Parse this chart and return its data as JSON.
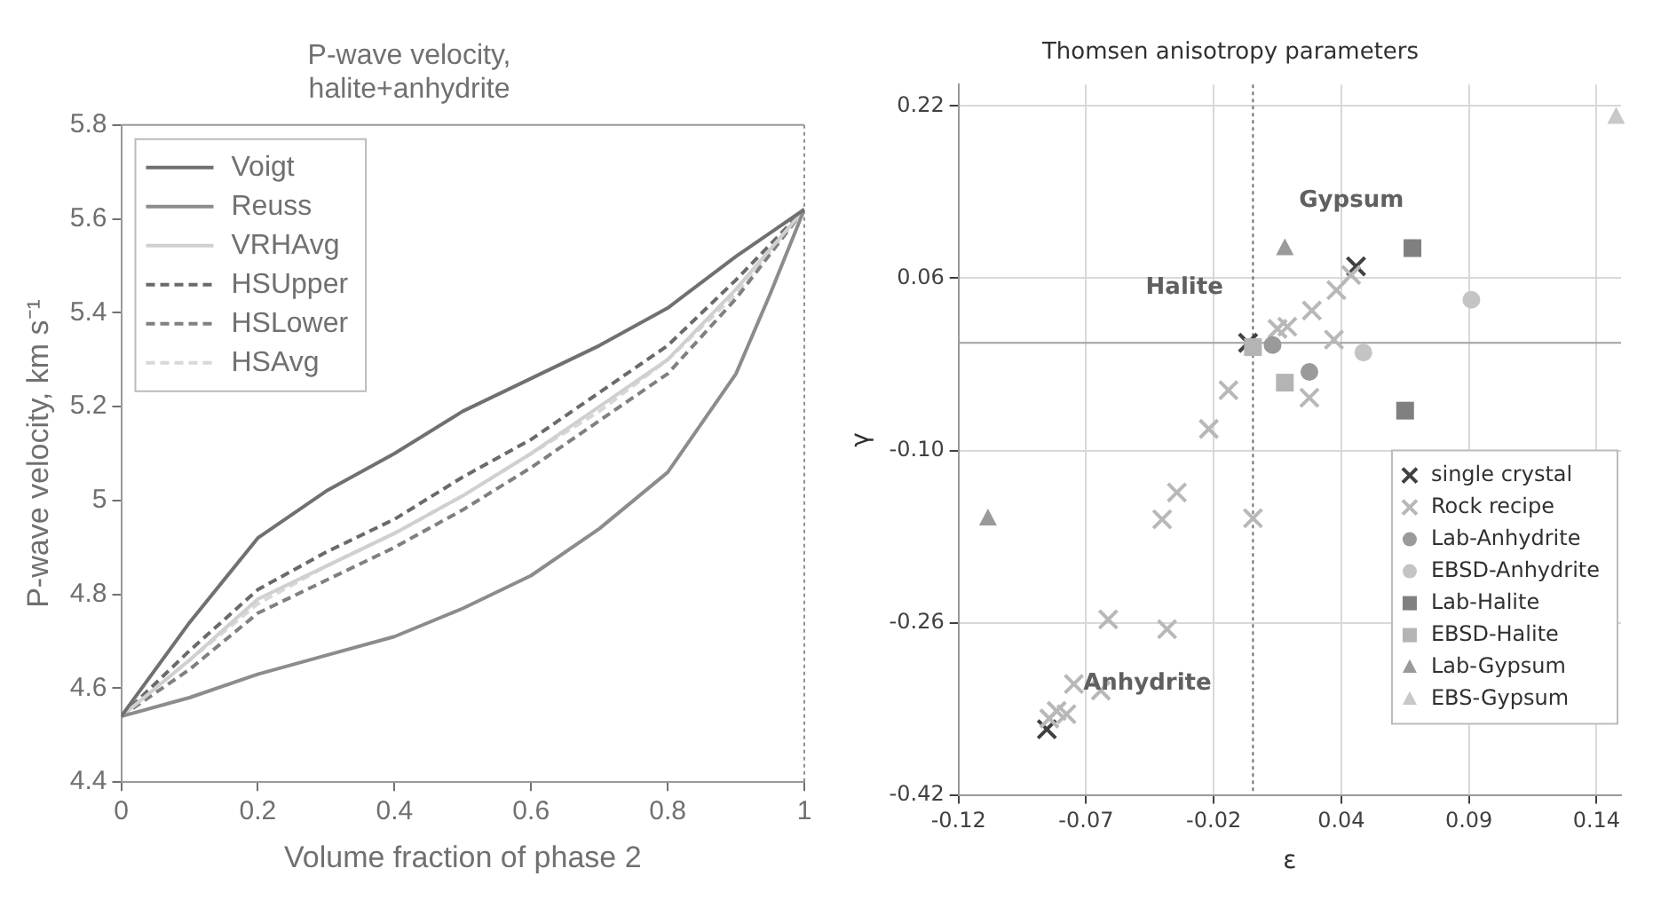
{
  "chart_data": [
    {
      "type": "line",
      "title": "P-wave velocity,\nhalite+anhydrite",
      "xlabel": "Volume fraction of phase 2",
      "ylabel": "P-wave velocity, km s⁻¹",
      "xlim": [
        0,
        1
      ],
      "xticks": [
        0,
        0.2,
        0.4,
        0.6,
        0.8,
        1
      ],
      "ylim": [
        4.4,
        5.8
      ],
      "yticks": [
        4.4,
        4.6,
        4.8,
        5,
        5.2,
        5.4,
        5.6,
        5.8
      ],
      "grid": false,
      "legend": "top left",
      "marker": "none",
      "series": [
        {
          "name": "Voigt",
          "color": "#707070",
          "line_style": "solid",
          "x": [
            0,
            0.1,
            0.2,
            0.3,
            0.4,
            0.5,
            0.6,
            0.7,
            0.8,
            0.9,
            1
          ],
          "values": [
            4.54,
            4.74,
            4.92,
            5.02,
            5.1,
            5.19,
            5.26,
            5.33,
            5.41,
            5.52,
            5.62
          ]
        },
        {
          "name": "Reuss",
          "color": "#8c8c8c",
          "line_style": "solid",
          "x": [
            0,
            0.1,
            0.2,
            0.3,
            0.4,
            0.5,
            0.6,
            0.7,
            0.8,
            0.9,
            0.95,
            1
          ],
          "values": [
            4.54,
            4.58,
            4.63,
            4.67,
            4.71,
            4.77,
            4.84,
            4.94,
            5.06,
            5.27,
            5.44,
            5.62
          ]
        },
        {
          "name": "VRHAvg",
          "color": "#d0d0d0",
          "line_style": "solid",
          "x": [
            0,
            0.1,
            0.2,
            0.3,
            0.4,
            0.5,
            0.6,
            0.7,
            0.8,
            0.9,
            1
          ],
          "values": [
            4.54,
            4.66,
            4.79,
            4.86,
            4.93,
            5.01,
            5.1,
            5.2,
            5.3,
            5.45,
            5.62
          ]
        },
        {
          "name": "HSUpper",
          "color": "#6a6a6a",
          "line_style": "dashed",
          "x": [
            0,
            0.1,
            0.2,
            0.3,
            0.4,
            0.5,
            0.6,
            0.7,
            0.8,
            0.9,
            1
          ],
          "values": [
            4.54,
            4.68,
            4.81,
            4.89,
            4.96,
            5.05,
            5.13,
            5.23,
            5.33,
            5.47,
            5.62
          ]
        },
        {
          "name": "HSLower",
          "color": "#808080",
          "line_style": "dashed",
          "x": [
            0,
            0.1,
            0.2,
            0.3,
            0.4,
            0.5,
            0.6,
            0.7,
            0.8,
            0.9,
            1
          ],
          "values": [
            4.54,
            4.64,
            4.76,
            4.83,
            4.9,
            4.98,
            5.07,
            5.17,
            5.27,
            5.43,
            5.62
          ]
        },
        {
          "name": "HSAvg",
          "color": "#d8d8d8",
          "line_style": "dashed",
          "x": [
            0,
            0.1,
            0.2,
            0.3,
            0.4,
            0.5,
            0.6,
            0.7,
            0.8,
            0.9,
            1
          ],
          "values": [
            4.54,
            4.66,
            4.78,
            4.86,
            4.93,
            5.01,
            5.1,
            5.19,
            5.3,
            5.44,
            5.62
          ]
        }
      ],
      "ref_lines": [
        {
          "axis": "x",
          "value": 1,
          "color": "#909090",
          "line_style": "dotted"
        }
      ]
    },
    {
      "type": "scatter",
      "title": "Thomsen anisotropy parameters",
      "xlabel": "ε",
      "ylabel": "γ",
      "xlim": [
        -0.12,
        0.15
      ],
      "xticks": [
        {
          "value": -0.12,
          "label": "-0.12"
        },
        {
          "value": -0.068,
          "label": "-0.07"
        },
        {
          "value": -0.016,
          "label": "-0.02"
        },
        {
          "value": 0.036,
          "label": "0.04"
        },
        {
          "value": 0.088,
          "label": "0.09"
        },
        {
          "value": 0.14,
          "label": "0.14"
        }
      ],
      "ylim": [
        -0.42,
        0.24
      ],
      "yticks": [
        {
          "value": -0.42,
          "label": "-0.42"
        },
        {
          "value": -0.26,
          "label": "-0.26"
        },
        {
          "value": -0.1,
          "label": "-0.10"
        },
        {
          "value": 0.06,
          "label": "0.06"
        },
        {
          "value": 0.22,
          "label": "0.22"
        }
      ],
      "grid": true,
      "legend": "bottom right",
      "series": [
        {
          "name": "single crystal",
          "color": "#404040",
          "marker": "cross",
          "x": [
            0.042,
            -0.084,
            -0.002
          ],
          "values": [
            0.071,
            -0.359,
            0.0
          ]
        },
        {
          "name": "Rock recipe",
          "color": "#b8b8b8",
          "marker": "cross",
          "x": [
            -0.01,
            -0.018,
            -0.031,
            -0.037,
            0.0,
            -0.059,
            -0.035,
            -0.073,
            -0.062,
            -0.08,
            -0.076,
            -0.083,
            0.005,
            0.01,
            0.014,
            0.024,
            0.034,
            0.04,
            0.033,
            0.023
          ],
          "values": [
            -0.044,
            -0.08,
            -0.139,
            -0.164,
            -0.163,
            -0.257,
            -0.266,
            -0.317,
            -0.323,
            -0.342,
            -0.345,
            -0.349,
            null,
            0.013,
            0.015,
            0.03,
            0.049,
            0.063,
            0.003,
            -0.051
          ]
        },
        {
          "name": "Lab-Anhydrite",
          "color": "#9a9a9a",
          "marker": "circle",
          "x": [
            0.008,
            0.023
          ],
          "values": [
            -0.002,
            -0.027
          ]
        },
        {
          "name": "EBSD-Anhydrite",
          "color": "#c4c4c4",
          "marker": "circle",
          "x": [
            0.045,
            0.089
          ],
          "values": [
            -0.009,
            0.04
          ]
        },
        {
          "name": "Lab-Halite",
          "color": "#808080",
          "marker": "square",
          "x": [
            0.065,
            0.062
          ],
          "values": [
            0.088,
            -0.063
          ]
        },
        {
          "name": "EBSD-Halite",
          "color": "#b4b4b4",
          "marker": "square",
          "x": [
            0.0,
            0.013
          ],
          "values": [
            -0.004,
            -0.037
          ]
        },
        {
          "name": "Lab-Gypsum",
          "color": "#9a9a9a",
          "marker": "triangle",
          "x": [
            0.013,
            -0.108
          ],
          "values": [
            0.088,
            -0.163
          ]
        },
        {
          "name": "EBS-Gypsum",
          "color": "#c8c8c8",
          "marker": "triangle",
          "x": [
            0.148
          ],
          "values": [
            0.21
          ]
        }
      ],
      "ref_lines": [
        {
          "axis": "x",
          "value": 0,
          "color": "#707070",
          "line_style": "dotted"
        },
        {
          "axis": "y",
          "value": 0,
          "color": "#a0a0a0",
          "line_style": "solid"
        }
      ],
      "annotations": [
        "Gypsum",
        "Halite",
        "Anhydrite"
      ]
    }
  ]
}
